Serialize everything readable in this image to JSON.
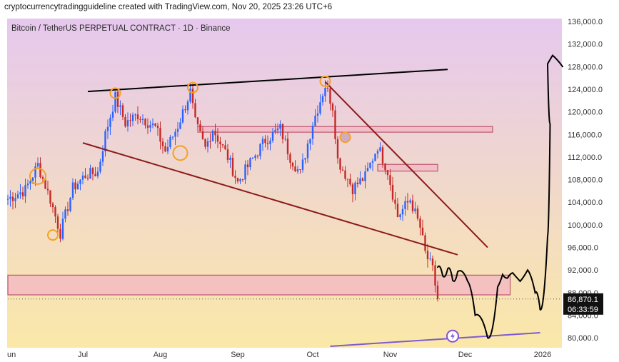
{
  "caption": "cryptocurrencytradingguideline created with TradingView.com, Nov 20, 2025 23:26 UTC+6",
  "symbol_line": "Bitcoin / TetherUS PERPETUAL CONTRACT · 1D · Binance",
  "colors": {
    "up": "#2962ff",
    "down": "#c62828",
    "trend": "#8b1a1a",
    "zone_fill": "#f3b6c4",
    "zone_stroke": "#b0405a",
    "marker": "#f5a020",
    "ink": "#000000",
    "bg_top": "#e6c8ee",
    "bg_bottom": "#fbe8a8",
    "baseline": "#7b5bd0"
  },
  "chart_data": {
    "type": "candlestick",
    "x_tick_labels": [
      "un",
      "Jul",
      "Aug",
      "Sep",
      "Oct",
      "Nov",
      "Dec",
      "2026"
    ],
    "y_tick_labels": [
      "136,000.0",
      "132,000.0",
      "128,000.0",
      "124,000.0",
      "120,000.0",
      "116,000.0",
      "112,000.0",
      "108,000.0",
      "104,000.0",
      "100,000.0",
      "96,000.0",
      "92,000.0",
      "88,000.0",
      "84,000.0",
      "80,000.0"
    ],
    "ylim": [
      77500,
      137000
    ],
    "last_price": "86,870.1",
    "countdown": "06:33:59",
    "series": [
      {
        "name": "",
        "points": [
          [
            "Jun 1",
            104600
          ],
          [
            "Jun 8",
            106200
          ],
          [
            "Jun 13",
            110600
          ],
          [
            "Jun 18",
            104500
          ],
          [
            "Jun 22",
            98500
          ],
          [
            "Jun 27",
            106500
          ],
          [
            "Jul 2",
            108800
          ],
          [
            "Jul 7",
            109300
          ],
          [
            "Jul 10",
            116000
          ],
          [
            "Jul 14",
            122600
          ],
          [
            "Jul 18",
            118000
          ],
          [
            "Jul 23",
            119500
          ],
          [
            "Jul 30",
            117200
          ],
          [
            "Aug 3",
            113000
          ],
          [
            "Aug 8",
            117500
          ],
          [
            "Aug 13",
            123500
          ],
          [
            "Aug 15",
            118000
          ],
          [
            "Aug 19",
            113500
          ],
          [
            "Aug 22",
            117000
          ],
          [
            "Aug 28",
            112000
          ],
          [
            "Sep 1",
            107500
          ],
          [
            "Sep 6",
            111000
          ],
          [
            "Sep 12",
            115000
          ],
          [
            "Sep 18",
            117000
          ],
          [
            "Sep 22",
            112000
          ],
          [
            "Sep 26",
            109000
          ],
          [
            "Oct 1",
            118000
          ],
          [
            "Oct 6",
            124700
          ],
          [
            "Oct 9",
            121000
          ],
          [
            "Oct 11",
            111500
          ],
          [
            "Oct 17",
            106500
          ],
          [
            "Oct 22",
            108500
          ],
          [
            "Oct 27",
            114000
          ],
          [
            "Oct 31",
            109500
          ],
          [
            "Nov 4",
            101500
          ],
          [
            "Nov 9",
            104500
          ],
          [
            "Nov 13",
            99500
          ],
          [
            "Nov 15",
            95000
          ],
          [
            "Nov 18",
            92000
          ],
          [
            "Nov 20",
            86870
          ]
        ]
      }
    ],
    "drawings": {
      "ascending_resistance": [
        [
          "Jul 3",
          123600
        ],
        [
          "Nov 24",
          127500
        ]
      ],
      "descending_support": [
        [
          "Jul 1",
          114500
        ],
        [
          "Nov 28",
          94700
        ]
      ],
      "descending_resistance": [
        [
          "Oct 6",
          125300
        ],
        [
          "Dec 10",
          96000
        ]
      ],
      "resistance_zone": {
        "from": "Aug 16",
        "to": "Dec 12",
        "low": 116400,
        "high": 117400
      },
      "mini_zone": {
        "from": "Oct 27",
        "to": "Nov 20",
        "low": 109500,
        "high": 110700
      },
      "support_zone": {
        "from": "Jun 1",
        "to": "Dec 19",
        "low": 87600,
        "high": 91100
      },
      "lower_trendline": [
        [
          "Oct 8",
          78500
        ],
        [
          "Dec 31",
          80900
        ]
      ],
      "marked_points": [
        [
          "Jun 13",
          108600
        ],
        [
          "Jun 19",
          98200
        ],
        [
          "Jul 14",
          123300
        ],
        [
          "Aug 9",
          112700
        ],
        [
          "Aug 14",
          124300
        ],
        [
          "Oct 6",
          125400
        ],
        [
          "Oct 14",
          115500
        ]
      ],
      "projection": [
        [
          "Nov 20",
          92500
        ],
        [
          "Nov 22",
          91000
        ],
        [
          "Nov 24",
          92200
        ],
        [
          "Nov 26",
          90200
        ],
        [
          "Nov 28",
          91700
        ],
        [
          "Dec 2",
          90000
        ],
        [
          "Dec 5",
          84000
        ],
        [
          "Dec 10",
          80000
        ],
        [
          "Dec 14",
          89000
        ],
        [
          "Dec 16",
          91200
        ],
        [
          "Dec 18",
          90600
        ],
        [
          "Dec 20",
          91500
        ],
        [
          "Dec 23",
          90000
        ],
        [
          "Dec 26",
          92000
        ],
        [
          "Dec 29",
          88000
        ],
        [
          "Dec 31",
          85000
        ],
        [
          "Jan 3",
          98000
        ],
        [
          "Jan 4",
          118000
        ],
        [
          "Jan 3",
          128500
        ],
        [
          "Jan 5",
          130000
        ],
        [
          "Jan 9",
          128000
        ]
      ]
    }
  }
}
